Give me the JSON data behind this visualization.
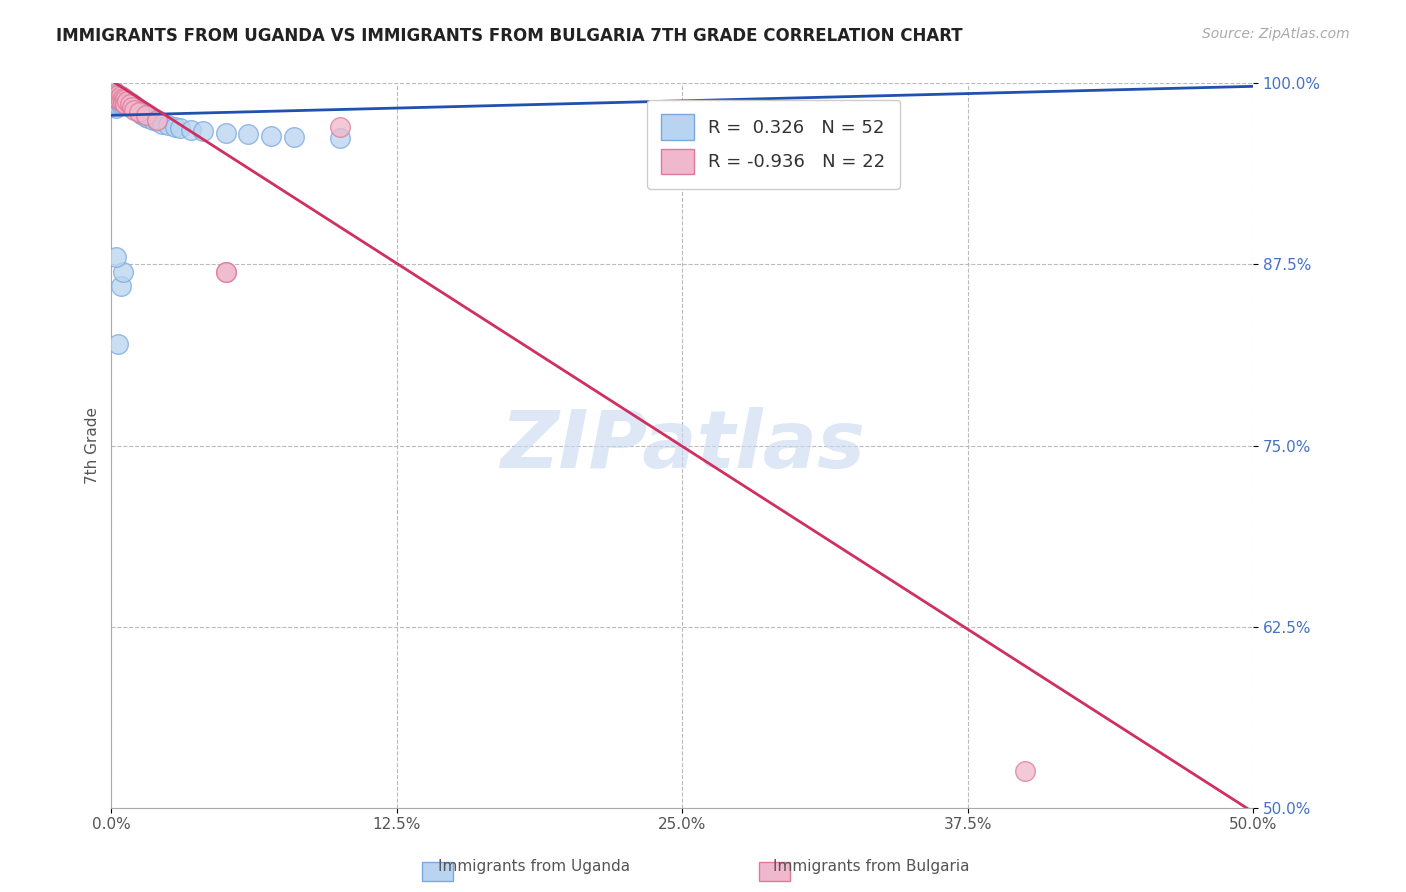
{
  "title": "IMMIGRANTS FROM UGANDA VS IMMIGRANTS FROM BULGARIA 7TH GRADE CORRELATION CHART",
  "source_text": "Source: ZipAtlas.com",
  "ylabel": "7th Grade",
  "xlim": [
    0.0,
    0.5
  ],
  "ylim": [
    0.5,
    1.0
  ],
  "xtick_labels": [
    "0.0%",
    "12.5%",
    "25.0%",
    "37.5%",
    "50.0%"
  ],
  "xtick_vals": [
    0.0,
    0.125,
    0.25,
    0.375,
    0.5
  ],
  "ytick_labels": [
    "100.0%",
    "87.5%",
    "75.0%",
    "62.5%",
    "50.0%"
  ],
  "ytick_vals": [
    1.0,
    0.875,
    0.75,
    0.625,
    0.5
  ],
  "uganda_color": "#b8d4f0",
  "bulgaria_color": "#f0b8cc",
  "uganda_edge": "#7aa8e0",
  "bulgaria_edge": "#e07898",
  "trend_uganda_color": "#2050b0",
  "trend_bulgaria_color": "#d03060",
  "R_uganda": 0.326,
  "N_uganda": 52,
  "R_bulgaria": -0.936,
  "N_bulgaria": 22,
  "legend_label_uganda": "Immigrants from Uganda",
  "legend_label_bulgaria": "Immigrants from Bulgaria",
  "watermark": "ZIPatlas",
  "watermark_color": "#c8d8f0",
  "background_color": "#ffffff",
  "grid_color": "#bbbbbb",
  "uganda_x": [
    0.001,
    0.001,
    0.001,
    0.002,
    0.002,
    0.002,
    0.002,
    0.002,
    0.003,
    0.003,
    0.003,
    0.003,
    0.004,
    0.004,
    0.004,
    0.004,
    0.005,
    0.005,
    0.005,
    0.006,
    0.006,
    0.006,
    0.007,
    0.007,
    0.008,
    0.008,
    0.009,
    0.01,
    0.01,
    0.011,
    0.012,
    0.013,
    0.014,
    0.015,
    0.016,
    0.018,
    0.02,
    0.022,
    0.025,
    0.028,
    0.03,
    0.035,
    0.04,
    0.05,
    0.06,
    0.07,
    0.08,
    0.1,
    0.003,
    0.004,
    0.005,
    0.002
  ],
  "uganda_y": [
    0.995,
    0.993,
    0.99,
    0.993,
    0.99,
    0.988,
    0.985,
    0.983,
    0.992,
    0.99,
    0.988,
    0.985,
    0.991,
    0.989,
    0.987,
    0.985,
    0.99,
    0.988,
    0.985,
    0.989,
    0.987,
    0.985,
    0.988,
    0.985,
    0.987,
    0.984,
    0.986,
    0.985,
    0.983,
    0.982,
    0.98,
    0.979,
    0.978,
    0.977,
    0.976,
    0.975,
    0.974,
    0.972,
    0.971,
    0.97,
    0.969,
    0.968,
    0.967,
    0.966,
    0.965,
    0.964,
    0.963,
    0.962,
    0.82,
    0.86,
    0.87,
    0.88
  ],
  "bulgaria_x": [
    0.001,
    0.002,
    0.002,
    0.003,
    0.003,
    0.004,
    0.004,
    0.005,
    0.005,
    0.006,
    0.006,
    0.007,
    0.008,
    0.009,
    0.01,
    0.012,
    0.015,
    0.02,
    0.05,
    0.1,
    0.05,
    0.4
  ],
  "bulgaria_y": [
    0.995,
    0.993,
    0.99,
    0.992,
    0.989,
    0.991,
    0.988,
    0.99,
    0.987,
    0.989,
    0.986,
    0.988,
    0.986,
    0.984,
    0.982,
    0.98,
    0.978,
    0.975,
    0.87,
    0.97,
    0.87,
    0.525
  ],
  "trend_uganda_y0": 0.978,
  "trend_uganda_y1": 0.998,
  "trend_bulgaria_y0": 1.002,
  "trend_bulgaria_y1": 0.497
}
